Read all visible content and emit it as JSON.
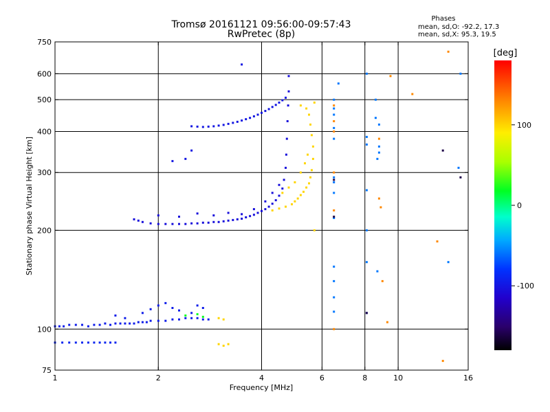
{
  "chart_data": {
    "type": "scatter",
    "title": "Tromsø 20161121 09:56:00-09:57:43",
    "subtitle": "RwPretec (8p)",
    "xlabel": "Frequency [MHz]",
    "ylabel": "Stationary phase Virtual Height [km]",
    "x_scale": "log",
    "y_scale": "log",
    "xlim": [
      1,
      16
    ],
    "ylim": [
      75,
      750
    ],
    "x_ticks": [
      1,
      2,
      4,
      6,
      8,
      10,
      16
    ],
    "y_ticks": [
      75,
      100,
      200,
      300,
      400,
      500,
      600,
      750
    ],
    "x_tick_labels": [
      "1",
      "2",
      "4",
      "6",
      "8",
      "10",
      "16"
    ],
    "y_tick_labels": [
      "75",
      "100",
      "200",
      "300",
      "400",
      "500",
      "600",
      "750"
    ],
    "x_gridlines": [
      2,
      4,
      6,
      8,
      10
    ],
    "y_gridlines": [
      100,
      200,
      300,
      400,
      500,
      600
    ],
    "grid": true,
    "stats": {
      "heading": "Phases",
      "o_line": "mean, sd,O: -92.2, 17.3",
      "x_line": "mean, sd,X:  95.3, 19.5"
    },
    "colorbar": {
      "unit": "[deg]",
      "range": [
        -180,
        180
      ],
      "ticks": [
        100,
        0,
        -100
      ],
      "tick_labels": [
        "100",
        "0",
        "-100"
      ]
    },
    "series": [
      {
        "name": "",
        "phase": -95,
        "points": [
          [
            1.0,
            102
          ],
          [
            1.03,
            102
          ],
          [
            1.06,
            102
          ],
          [
            1.1,
            103
          ],
          [
            1.15,
            103
          ],
          [
            1.2,
            103
          ],
          [
            1.25,
            102
          ],
          [
            1.3,
            103
          ],
          [
            1.35,
            103
          ],
          [
            1.4,
            104
          ],
          [
            1.45,
            103
          ],
          [
            1.5,
            104
          ],
          [
            1.55,
            104
          ],
          [
            1.6,
            104
          ],
          [
            1.65,
            104
          ],
          [
            1.7,
            104
          ],
          [
            1.75,
            105
          ],
          [
            1.8,
            105
          ],
          [
            1.85,
            105
          ],
          [
            1.9,
            106
          ],
          [
            2.0,
            106
          ],
          [
            2.1,
            106
          ],
          [
            2.2,
            107
          ],
          [
            2.3,
            107
          ],
          [
            2.4,
            108
          ],
          [
            2.5,
            108
          ],
          [
            2.6,
            108
          ],
          [
            2.7,
            107
          ],
          [
            2.8,
            107
          ],
          [
            1.5,
            110
          ],
          [
            1.6,
            108
          ],
          [
            1.8,
            112
          ],
          [
            1.9,
            115
          ],
          [
            2.0,
            118
          ],
          [
            2.1,
            120
          ],
          [
            2.2,
            116
          ],
          [
            2.3,
            114
          ],
          [
            2.5,
            112
          ],
          [
            2.6,
            118
          ],
          [
            2.7,
            116
          ]
        ]
      },
      {
        "name": "",
        "phase": -90,
        "points": [
          [
            1.0,
            91
          ],
          [
            1.05,
            91
          ],
          [
            1.1,
            91
          ],
          [
            1.15,
            91
          ],
          [
            1.2,
            91
          ],
          [
            1.25,
            91
          ],
          [
            1.3,
            91
          ],
          [
            1.35,
            91
          ],
          [
            1.4,
            91
          ],
          [
            1.45,
            91
          ],
          [
            1.5,
            91
          ]
        ]
      },
      {
        "name": "",
        "phase": -105,
        "points": [
          [
            1.7,
            216
          ],
          [
            1.75,
            214
          ],
          [
            1.8,
            212
          ],
          [
            1.9,
            210
          ],
          [
            2.0,
            209
          ],
          [
            2.1,
            209
          ],
          [
            2.2,
            209
          ],
          [
            2.3,
            209
          ],
          [
            2.4,
            209
          ],
          [
            2.5,
            210
          ],
          [
            2.6,
            210
          ],
          [
            2.7,
            211
          ],
          [
            2.8,
            211
          ],
          [
            2.9,
            212
          ],
          [
            3.0,
            212
          ],
          [
            3.1,
            213
          ],
          [
            3.2,
            214
          ],
          [
            3.3,
            215
          ],
          [
            3.4,
            216
          ],
          [
            3.5,
            217
          ],
          [
            3.6,
            219
          ],
          [
            3.7,
            221
          ],
          [
            3.8,
            223
          ],
          [
            3.9,
            226
          ],
          [
            4.0,
            229
          ],
          [
            4.1,
            232
          ],
          [
            4.2,
            236
          ],
          [
            4.3,
            241
          ],
          [
            4.4,
            247
          ],
          [
            4.5,
            255
          ],
          [
            4.6,
            268
          ],
          [
            4.65,
            285
          ],
          [
            4.7,
            310
          ],
          [
            4.72,
            340
          ],
          [
            4.74,
            380
          ],
          [
            4.76,
            430
          ],
          [
            4.78,
            480
          ],
          [
            4.8,
            530
          ],
          [
            4.8,
            590
          ],
          [
            2.0,
            222
          ],
          [
            2.3,
            220
          ],
          [
            2.6,
            225
          ],
          [
            2.9,
            222
          ],
          [
            3.2,
            226
          ],
          [
            3.5,
            224
          ],
          [
            3.8,
            232
          ],
          [
            4.1,
            245
          ],
          [
            4.3,
            260
          ],
          [
            4.5,
            275
          ]
        ]
      },
      {
        "name": "",
        "phase": -100,
        "points": [
          [
            2.5,
            415
          ],
          [
            2.6,
            414
          ],
          [
            2.7,
            413
          ],
          [
            2.8,
            414
          ],
          [
            2.9,
            415
          ],
          [
            3.0,
            417
          ],
          [
            3.1,
            419
          ],
          [
            3.2,
            422
          ],
          [
            3.3,
            425
          ],
          [
            3.4,
            428
          ],
          [
            3.5,
            432
          ],
          [
            3.6,
            436
          ],
          [
            3.7,
            440
          ],
          [
            3.8,
            445
          ],
          [
            3.9,
            450
          ],
          [
            4.0,
            456
          ],
          [
            4.1,
            462
          ],
          [
            4.2,
            468
          ],
          [
            4.3,
            475
          ],
          [
            4.4,
            482
          ],
          [
            4.5,
            490
          ],
          [
            4.6,
            498
          ],
          [
            4.7,
            507
          ],
          [
            3.5,
            640
          ],
          [
            2.2,
            325
          ],
          [
            2.4,
            330
          ],
          [
            2.5,
            350
          ]
        ]
      },
      {
        "name": "",
        "phase": 100,
        "points": [
          [
            4.3,
            230
          ],
          [
            4.5,
            233
          ],
          [
            4.7,
            236
          ],
          [
            4.9,
            240
          ],
          [
            5.0,
            245
          ],
          [
            5.1,
            250
          ],
          [
            5.2,
            256
          ],
          [
            5.3,
            262
          ],
          [
            5.4,
            270
          ],
          [
            5.5,
            278
          ],
          [
            5.55,
            290
          ],
          [
            5.6,
            305
          ],
          [
            5.65,
            330
          ],
          [
            5.65,
            360
          ],
          [
            5.6,
            390
          ],
          [
            5.55,
            420
          ],
          [
            5.5,
            450
          ],
          [
            5.2,
            480
          ],
          [
            5.4,
            470
          ],
          [
            4.6,
            260
          ],
          [
            4.8,
            270
          ],
          [
            5.0,
            280
          ],
          [
            5.2,
            300
          ],
          [
            5.35,
            320
          ],
          [
            5.45,
            340
          ],
          [
            3.0,
            108
          ],
          [
            3.1,
            107
          ],
          [
            3.0,
            90
          ],
          [
            3.1,
            89
          ],
          [
            3.2,
            90
          ],
          [
            5.7,
            200
          ],
          [
            5.7,
            490
          ]
        ]
      },
      {
        "name": "",
        "phase": 20,
        "points": [
          [
            2.4,
            110
          ],
          [
            2.6,
            111
          ],
          [
            2.7,
            109
          ]
        ]
      },
      {
        "name": "",
        "phase": 130,
        "points": [
          [
            6.5,
            480
          ],
          [
            6.5,
            430
          ],
          [
            6.5,
            400
          ],
          [
            6.5,
            300
          ],
          [
            6.5,
            230
          ],
          [
            6.5,
            100
          ],
          [
            8.8,
            380
          ],
          [
            8.9,
            235
          ],
          [
            8.8,
            250
          ],
          [
            9.0,
            140
          ],
          [
            9.3,
            105
          ],
          [
            9.5,
            590
          ],
          [
            11.0,
            520
          ],
          [
            13.0,
            185
          ],
          [
            13.5,
            80
          ],
          [
            14.0,
            700
          ]
        ]
      },
      {
        "name": "",
        "phase": -60,
        "points": [
          [
            6.5,
            500
          ],
          [
            6.5,
            470
          ],
          [
            6.5,
            450
          ],
          [
            6.5,
            410
          ],
          [
            6.5,
            380
          ],
          [
            6.5,
            290
          ],
          [
            6.5,
            280
          ],
          [
            6.5,
            260
          ],
          [
            6.5,
            218
          ],
          [
            6.5,
            155
          ],
          [
            6.5,
            140
          ],
          [
            6.5,
            125
          ],
          [
            6.5,
            113
          ],
          [
            6.7,
            560
          ],
          [
            8.1,
            600
          ],
          [
            8.1,
            385
          ],
          [
            8.1,
            365
          ],
          [
            8.1,
            265
          ],
          [
            8.1,
            200
          ],
          [
            8.1,
            160
          ],
          [
            8.1,
            112
          ],
          [
            8.6,
            500
          ],
          [
            8.6,
            440
          ],
          [
            8.8,
            420
          ],
          [
            8.8,
            360
          ],
          [
            8.8,
            345
          ],
          [
            8.7,
            330
          ],
          [
            8.7,
            150
          ],
          [
            14.0,
            160
          ],
          [
            15.0,
            310
          ],
          [
            15.2,
            600
          ]
        ]
      },
      {
        "name": "",
        "phase": -160,
        "points": [
          [
            6.5,
            285
          ],
          [
            6.5,
            220
          ],
          [
            8.1,
            112
          ],
          [
            13.5,
            350
          ],
          [
            15.2,
            290
          ]
        ]
      }
    ]
  }
}
